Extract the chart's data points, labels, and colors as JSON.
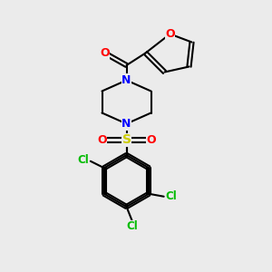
{
  "bg_color": "#ebebeb",
  "bond_color": "#000000",
  "N_color": "#0000ff",
  "O_color": "#ff0000",
  "S_color": "#cccc00",
  "Cl_color": "#00bb00",
  "line_width": 1.5,
  "figsize": [
    3.0,
    3.0
  ],
  "dpi": 100,
  "xlim": [
    0,
    10
  ],
  "ylim": [
    0,
    10
  ]
}
